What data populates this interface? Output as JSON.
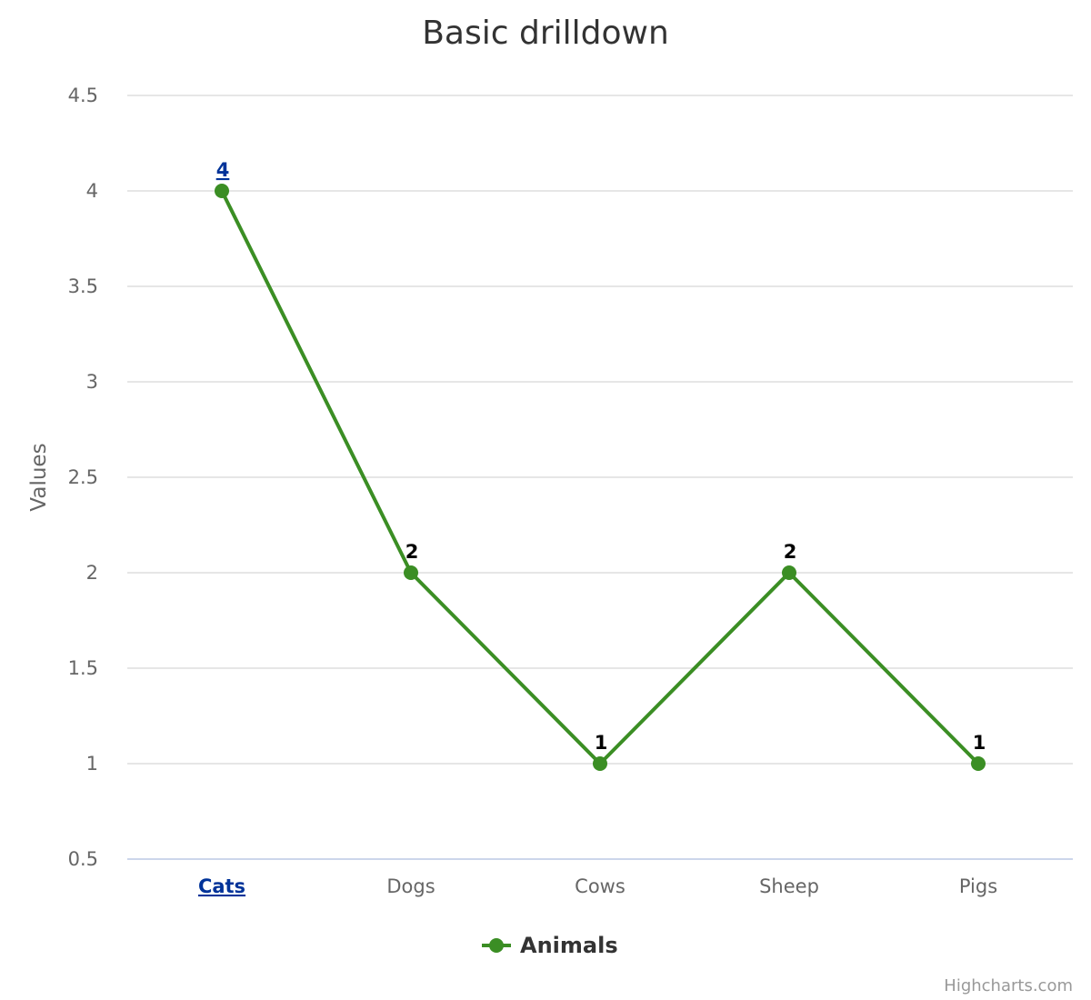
{
  "chart_data": {
    "type": "line",
    "title": "Basic drilldown",
    "ylabel": "Values",
    "xlabel": "",
    "ylim": [
      0.5,
      4.5
    ],
    "y_ticks": [
      "0.5",
      "1",
      "1.5",
      "2",
      "2.5",
      "3",
      "3.5",
      "4",
      "4.5"
    ],
    "y_tick_values": [
      0.5,
      1,
      1.5,
      2,
      2.5,
      3,
      3.5,
      4,
      4.5
    ],
    "categories": [
      "Cats",
      "Dogs",
      "Cows",
      "Sheep",
      "Pigs"
    ],
    "drilldown_categories": [
      true,
      false,
      false,
      false,
      false
    ],
    "series": [
      {
        "name": "Animals",
        "values": [
          4,
          2,
          1,
          2,
          1
        ],
        "labels": [
          "4",
          "2",
          "1",
          "2",
          "1"
        ],
        "color": "#3b8e24"
      }
    ],
    "grid": true,
    "legend_position": "bottom-center",
    "credits": "Highcharts.com"
  },
  "colors": {
    "series": "#3b8e24",
    "drilldown_link": "#003399",
    "gridline": "#e6e6e6",
    "axis_line": "#ccd6eb"
  }
}
